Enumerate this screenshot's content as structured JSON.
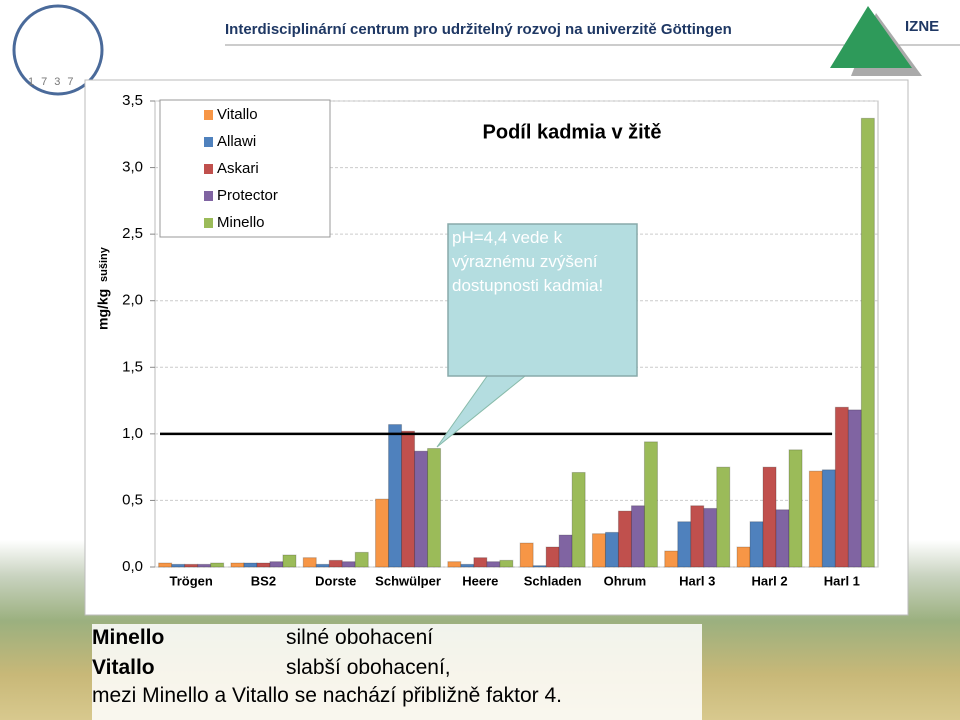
{
  "header": {
    "institution": "Interdisciplinární centrum pro udržitelný rozvoj na univerzitě Göttingen",
    "acronym": "IZNE",
    "logo_year": "1737"
  },
  "chart_data": {
    "type": "bar",
    "title": "Podíl kadmia v žitě",
    "y_label": "mg/kg",
    "y_label_unit": "sušiny",
    "categories": [
      "Trögen",
      "BS2",
      "Dorste",
      "Schwülper",
      "Heere",
      "Schladen",
      "Ohrum",
      "Harl 3",
      "Harl 2",
      "Harl 1"
    ],
    "series": [
      {
        "name": "Vitallo",
        "color": "#f79646",
        "values": [
          0.03,
          0.03,
          0.07,
          0.51,
          0.04,
          0.18,
          0.25,
          0.12,
          0.15,
          0.72
        ]
      },
      {
        "name": "Allawi",
        "color": "#4f81bd",
        "values": [
          0.02,
          0.03,
          0.02,
          1.07,
          0.02,
          0.01,
          0.26,
          0.34,
          0.34,
          0.73
        ]
      },
      {
        "name": "Askari",
        "color": "#c0504d",
        "values": [
          0.02,
          0.03,
          0.05,
          1.02,
          0.07,
          0.15,
          0.42,
          0.46,
          0.75,
          1.2
        ]
      },
      {
        "name": "Protector",
        "color": "#8064a2",
        "values": [
          0.02,
          0.04,
          0.04,
          0.87,
          0.04,
          0.24,
          0.46,
          0.44,
          0.43,
          1.18
        ]
      },
      {
        "name": "Minello",
        "color": "#9bbb59",
        "values": [
          0.03,
          0.09,
          0.11,
          0.89,
          0.05,
          0.71,
          0.94,
          0.75,
          0.88,
          3.37
        ]
      }
    ],
    "ylim": [
      0,
      3.5
    ],
    "yticks": [
      {
        "value": 0,
        "label": "0,0"
      },
      {
        "value": 0.5,
        "label": "0,5"
      },
      {
        "value": 1,
        "label": "1,0"
      },
      {
        "value": 1.5,
        "label": "1,5"
      },
      {
        "value": 2,
        "label": "2,0"
      },
      {
        "value": 2.5,
        "label": "2,5"
      },
      {
        "value": 3,
        "label": "3,0"
      },
      {
        "value": 3.5,
        "label": "3,5"
      }
    ],
    "grid": true,
    "legend": "upper left",
    "threshold": 1,
    "annotation": "pH=4,4 vede k výraznému zvýšení dostupnosti kadmia!"
  },
  "notes": {
    "rows": [
      [
        "Minello",
        "silné obohacení"
      ],
      [
        "Vitallo",
        "slabší obohacení,"
      ]
    ],
    "conclusion": "mezi Minello a Vitallo se nachází přibližně faktor 4."
  }
}
